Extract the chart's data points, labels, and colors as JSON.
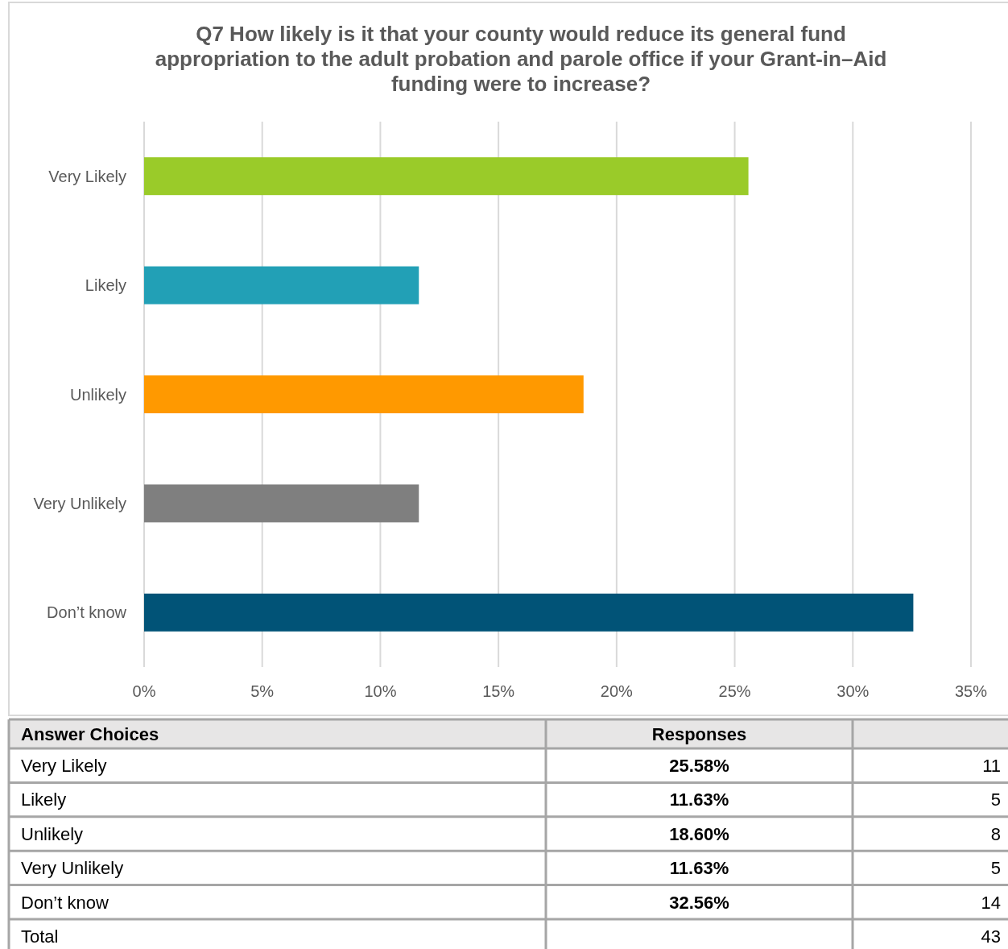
{
  "chart_data": [
    {
      "type": "bar",
      "orientation": "horizontal",
      "title": "Q7 How likely is it that your county would reduce its general fund appropriation to the adult probation and parole office if your Grant-in–Aid funding were to increase?",
      "categories": [
        "Very Likely",
        "Likely",
        "Unlikely",
        "Very Unlikely",
        "Don’t know"
      ],
      "values": [
        25.58,
        11.63,
        18.6,
        11.63,
        32.56
      ],
      "colors": [
        "#9acb29",
        "#22a0b6",
        "#ff9900",
        "#7f7f7f",
        "#015377"
      ],
      "xlim": [
        0,
        35
      ],
      "xticks": [
        {
          "value": 0,
          "label": "0%"
        },
        {
          "value": 5,
          "label": "5%"
        },
        {
          "value": 10,
          "label": "10%"
        },
        {
          "value": 15,
          "label": "15%"
        },
        {
          "value": 20,
          "label": "20%"
        },
        {
          "value": 25,
          "label": "25%"
        },
        {
          "value": 30,
          "label": "30%"
        },
        {
          "value": 35,
          "label": "35%"
        }
      ],
      "grid": "x"
    },
    {
      "type": "other",
      "categories": [
        "Very Likely",
        "Likely",
        "Unlikely",
        "Very Unlikely",
        "Don’t know",
        "Total"
      ],
      "series": [
        {
          "name": "Responses",
          "values": [
            25.58,
            11.63,
            18.6,
            11.63,
            32.56,
            null
          ],
          "value_labels": [
            "25.58%",
            "11.63%",
            "18.60%",
            "11.63%",
            "32.56%",
            null
          ]
        },
        {
          "values": [
            11,
            5,
            8,
            5,
            14,
            43
          ]
        }
      ],
      "data_labels": true,
      "annotations": [
        "Answer Choices"
      ]
    }
  ]
}
